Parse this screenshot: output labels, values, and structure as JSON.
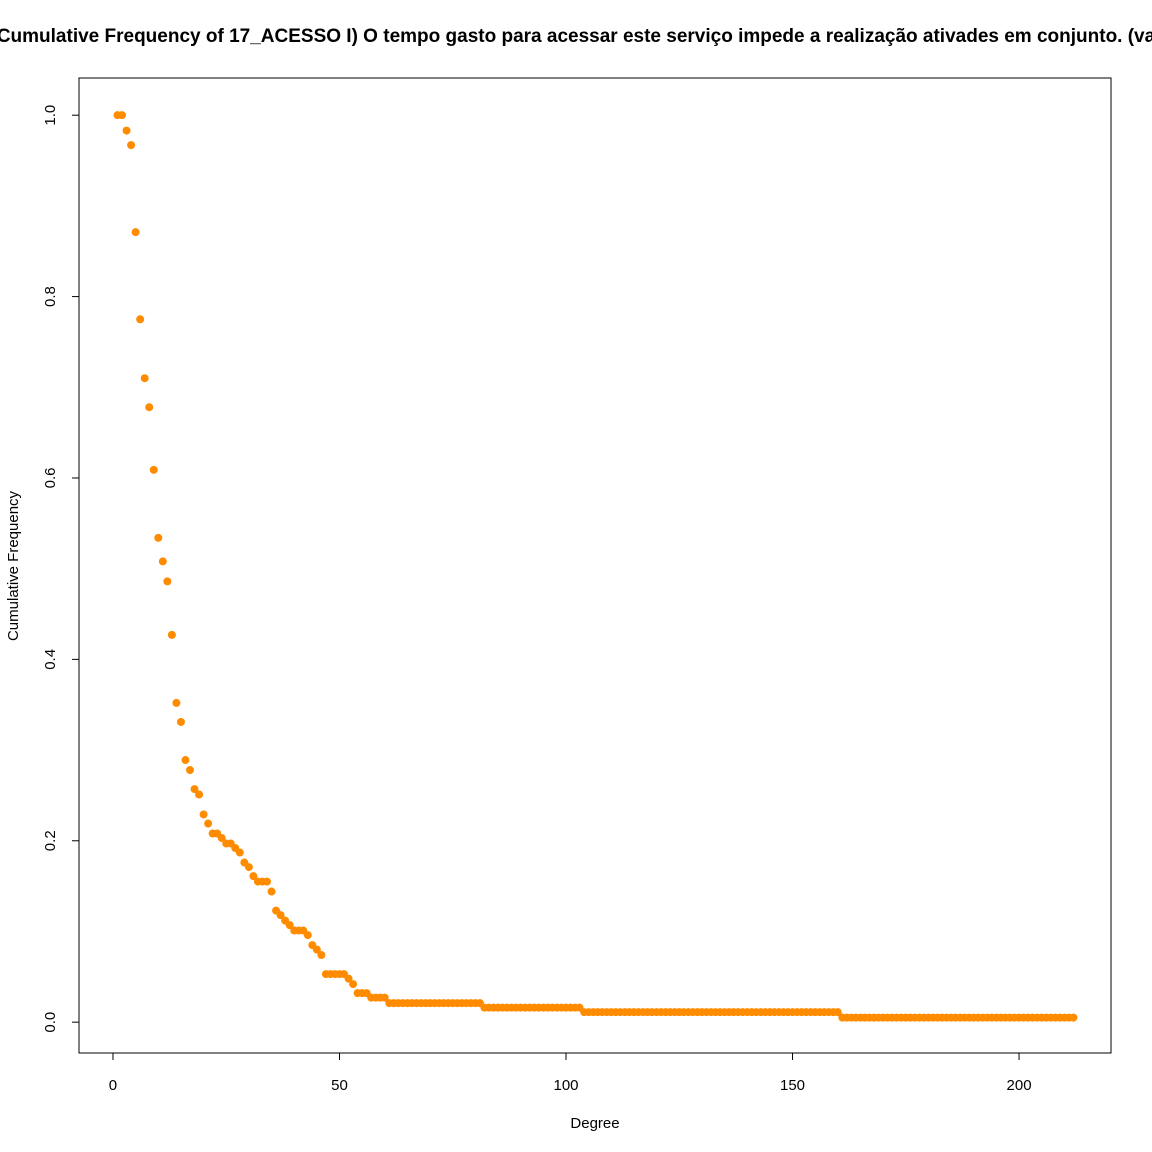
{
  "chart_data": {
    "type": "scatter",
    "title": "Cumulative Frequency of 17_ACESSO I) O tempo gasto para acessar este serviço impede a realização ativades em conjunto. (va",
    "x_label": "Degree",
    "y_label": "Cumulative Frequency",
    "color": "#ff8c00",
    "grid": false,
    "xlim": [
      -7.5,
      220.3
    ],
    "ylim": [
      -0.034,
      1.041
    ],
    "xticks": [
      0,
      50,
      100,
      150,
      200
    ],
    "yticks": [
      {
        "value": 0,
        "label": "0.0"
      },
      0.2,
      0.4,
      0.6,
      0.8,
      {
        "value": 1,
        "label": "1.0"
      }
    ],
    "x": [
      1,
      2,
      3,
      4,
      5,
      6,
      7,
      8,
      9,
      10,
      11,
      12,
      13,
      14,
      15,
      16,
      17,
      18,
      19,
      20,
      21,
      22,
      23,
      24,
      25,
      26,
      27,
      28,
      29,
      30,
      31,
      32,
      33,
      34,
      35,
      36,
      37,
      38,
      39,
      40,
      41,
      42,
      43,
      44,
      45,
      46,
      47,
      48,
      49,
      50,
      51,
      52,
      53,
      54,
      55,
      56,
      57,
      58,
      59,
      60,
      61,
      62,
      63,
      64,
      65,
      66,
      67,
      68,
      69,
      70,
      71,
      72,
      73,
      74,
      75,
      76,
      77,
      78,
      79,
      80,
      81,
      82,
      83,
      84,
      85,
      86,
      87,
      88,
      89,
      90,
      91,
      92,
      93,
      94,
      95,
      96,
      97,
      98,
      99,
      100,
      101,
      102,
      103,
      104,
      105,
      106,
      107,
      108,
      109,
      110,
      111,
      112,
      113,
      114,
      115,
      116,
      117,
      118,
      119,
      120,
      121,
      122,
      123,
      124,
      125,
      126,
      127,
      128,
      129,
      130,
      131,
      132,
      133,
      134,
      135,
      136,
      137,
      138,
      139,
      140,
      141,
      142,
      143,
      144,
      145,
      146,
      147,
      148,
      149,
      150,
      151,
      152,
      153,
      154,
      155,
      156,
      157,
      158,
      159,
      160,
      161,
      162,
      163,
      164,
      165,
      166,
      167,
      168,
      169,
      170,
      171,
      172,
      173,
      174,
      175,
      176,
      177,
      178,
      179,
      180,
      181,
      182,
      183,
      184,
      185,
      186,
      187,
      188,
      189,
      190,
      191,
      192,
      193,
      194,
      195,
      196,
      197,
      198,
      199,
      200,
      201,
      202,
      203,
      204,
      205,
      206,
      207,
      208,
      209,
      210,
      211,
      212
    ],
    "values": [
      1,
      1,
      0.983,
      0.967,
      0.871,
      0.775,
      0.71,
      0.678,
      0.609,
      0.534,
      0.508,
      0.486,
      0.427,
      0.352,
      0.331,
      0.289,
      0.278,
      0.257,
      0.251,
      0.229,
      0.219,
      0.208,
      0.208,
      0.203,
      0.197,
      0.197,
      0.192,
      0.187,
      0.176,
      0.171,
      0.161,
      0.155,
      0.155,
      0.155,
      0.144,
      0.123,
      0.118,
      0.112,
      0.107,
      0.101,
      0.101,
      0.101,
      0.096,
      0.085,
      0.08,
      0.074,
      0.053,
      0.053,
      0.053,
      0.053,
      0.053,
      0.048,
      0.042,
      0.032,
      0.032,
      0.032,
      0.027,
      0.027,
      0.027,
      0.027,
      0.021,
      0.021,
      0.021,
      0.021,
      0.021,
      0.021,
      0.021,
      0.021,
      0.021,
      0.021,
      0.021,
      0.021,
      0.021,
      0.021,
      0.021,
      0.021,
      0.021,
      0.021,
      0.021,
      0.021,
      0.021,
      0.016,
      0.016,
      0.016,
      0.016,
      0.016,
      0.016,
      0.016,
      0.016,
      0.016,
      0.016,
      0.016,
      0.016,
      0.016,
      0.016,
      0.016,
      0.016,
      0.016,
      0.016,
      0.016,
      0.016,
      0.016,
      0.016,
      0.011,
      0.011,
      0.011,
      0.011,
      0.011,
      0.011,
      0.011,
      0.011,
      0.011,
      0.011,
      0.011,
      0.011,
      0.011,
      0.011,
      0.011,
      0.011,
      0.011,
      0.011,
      0.011,
      0.011,
      0.011,
      0.011,
      0.011,
      0.011,
      0.011,
      0.011,
      0.011,
      0.011,
      0.011,
      0.011,
      0.011,
      0.011,
      0.011,
      0.011,
      0.011,
      0.011,
      0.011,
      0.011,
      0.011,
      0.011,
      0.011,
      0.011,
      0.011,
      0.011,
      0.011,
      0.011,
      0.011,
      0.011,
      0.011,
      0.011,
      0.011,
      0.011,
      0.011,
      0.011,
      0.011,
      0.011,
      0.011,
      0.005,
      0.005,
      0.005,
      0.005,
      0.005,
      0.005,
      0.005,
      0.005,
      0.005,
      0.005,
      0.005,
      0.005,
      0.005,
      0.005,
      0.005,
      0.005,
      0.005,
      0.005,
      0.005,
      0.005,
      0.005,
      0.005,
      0.005,
      0.005,
      0.005,
      0.005,
      0.005,
      0.005,
      0.005,
      0.005,
      0.005,
      0.005,
      0.005,
      0.005,
      0.005,
      0.005,
      0.005,
      0.005,
      0.005,
      0.005,
      0.005,
      0.005,
      0.005,
      0.005,
      0.005,
      0.005,
      0.005,
      0.005,
      0.005,
      0.005,
      0.005,
      0.005
    ]
  }
}
